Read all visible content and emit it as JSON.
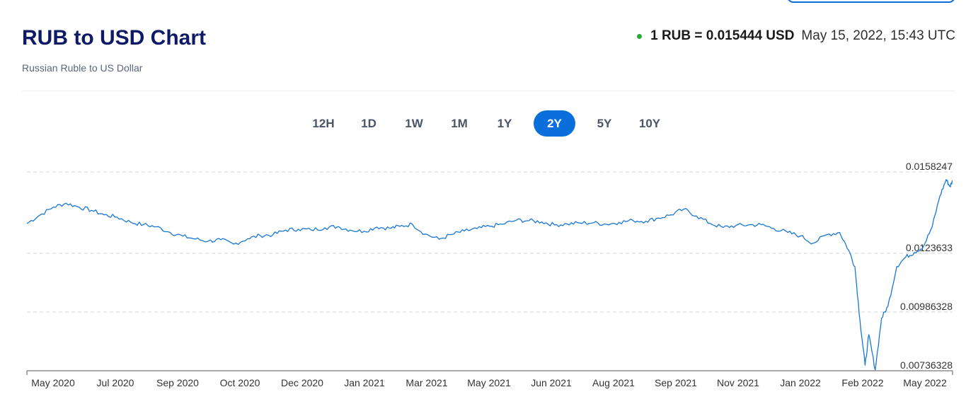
{
  "header": {
    "title": "RUB to USD Chart",
    "subtitle": "Russian Ruble to US Dollar",
    "rate_text": "1 RUB = 0.015444 USD",
    "timestamp": "May 15, 2022, 15:43 UTC"
  },
  "colors": {
    "accent": "#0a6edb",
    "title": "#0f1a66",
    "live_dot": "#26a83a",
    "line": "#1877d6"
  },
  "range_tabs": [
    {
      "label": "12H",
      "active": false
    },
    {
      "label": "1D",
      "active": false
    },
    {
      "label": "1W",
      "active": false
    },
    {
      "label": "1M",
      "active": false
    },
    {
      "label": "1Y",
      "active": false
    },
    {
      "label": "2Y",
      "active": true
    },
    {
      "label": "5Y",
      "active": false
    },
    {
      "label": "10Y",
      "active": false
    }
  ],
  "chart_data": {
    "type": "line",
    "title": "RUB to USD Chart",
    "xlabel": "",
    "ylabel": "",
    "grid": "horizontal dashed",
    "y_ticks": [
      "0.0158247",
      "0.0123633",
      "0.00986328",
      "0.00736328"
    ],
    "ylim": [
      0.00736328,
      0.0158247
    ],
    "x_ticks": [
      "May 2020",
      "Jul 2020",
      "Sep 2020",
      "Oct 2020",
      "Dec 2020",
      "Jan 2021",
      "Mar 2021",
      "May 2021",
      "Jun 2021",
      "Aug 2021",
      "Sep 2021",
      "Nov 2021",
      "Jan 2022",
      "Feb 2022",
      "May 2022"
    ],
    "xlim": [
      "2020-05-15",
      "2022-05-15"
    ],
    "series": [
      {
        "x": [
          "2020-05-15",
          "2020-05-25",
          "2020-06-05",
          "2020-06-15",
          "2020-06-25",
          "2020-07-05",
          "2020-07-15",
          "2020-07-25",
          "2020-08-05",
          "2020-08-15",
          "2020-08-25",
          "2020-09-05",
          "2020-09-15",
          "2020-09-25",
          "2020-10-05",
          "2020-10-15",
          "2020-10-25",
          "2020-11-05",
          "2020-11-15",
          "2020-11-25",
          "2020-12-05",
          "2020-12-15",
          "2020-12-25",
          "2021-01-05",
          "2021-01-15",
          "2021-01-25",
          "2021-02-05",
          "2021-02-15",
          "2021-02-25",
          "2021-03-05",
          "2021-03-15",
          "2021-03-25",
          "2021-04-05",
          "2021-04-15",
          "2021-04-25",
          "2021-05-05",
          "2021-05-15",
          "2021-05-25",
          "2021-06-05",
          "2021-06-15",
          "2021-06-25",
          "2021-07-05",
          "2021-07-15",
          "2021-07-25",
          "2021-08-05",
          "2021-08-15",
          "2021-08-25",
          "2021-09-05",
          "2021-09-15",
          "2021-09-25",
          "2021-10-05",
          "2021-10-15",
          "2021-10-25",
          "2021-11-05",
          "2021-11-15",
          "2021-11-25",
          "2021-12-05",
          "2021-12-15",
          "2021-12-25",
          "2022-01-05",
          "2022-01-15",
          "2022-01-25",
          "2022-02-05",
          "2022-02-15",
          "2022-02-22",
          "2022-02-27",
          "2022-03-03",
          "2022-03-07",
          "2022-03-10",
          "2022-03-15",
          "2022-03-20",
          "2022-03-25",
          "2022-04-01",
          "2022-04-08",
          "2022-04-15",
          "2022-04-22",
          "2022-04-29",
          "2022-05-05",
          "2022-05-10",
          "2022-05-13",
          "2022-05-15"
        ],
        "y": [
          0.01363,
          0.01398,
          0.01433,
          0.01449,
          0.01433,
          0.01419,
          0.014,
          0.0139,
          0.01368,
          0.01358,
          0.01349,
          0.01325,
          0.01309,
          0.01297,
          0.01288,
          0.01294,
          0.01275,
          0.01298,
          0.01312,
          0.01315,
          0.01335,
          0.01339,
          0.01336,
          0.01345,
          0.0135,
          0.01335,
          0.0133,
          0.01348,
          0.01343,
          0.01351,
          0.0136,
          0.01318,
          0.01296,
          0.01316,
          0.01331,
          0.01341,
          0.01351,
          0.0136,
          0.01377,
          0.01375,
          0.0137,
          0.01357,
          0.01361,
          0.01365,
          0.01366,
          0.0136,
          0.01368,
          0.01376,
          0.01373,
          0.01386,
          0.014,
          0.01424,
          0.01395,
          0.01363,
          0.01346,
          0.01354,
          0.01357,
          0.01358,
          0.01342,
          0.01325,
          0.0131,
          0.01279,
          0.01316,
          0.01325,
          0.0125,
          0.0118,
          0.0095,
          0.0076,
          0.0089,
          0.0074,
          0.0096,
          0.0101,
          0.0118,
          0.0122,
          0.0124,
          0.01265,
          0.0135,
          0.0148,
          0.0155,
          0.0152,
          0.01544
        ]
      }
    ]
  }
}
